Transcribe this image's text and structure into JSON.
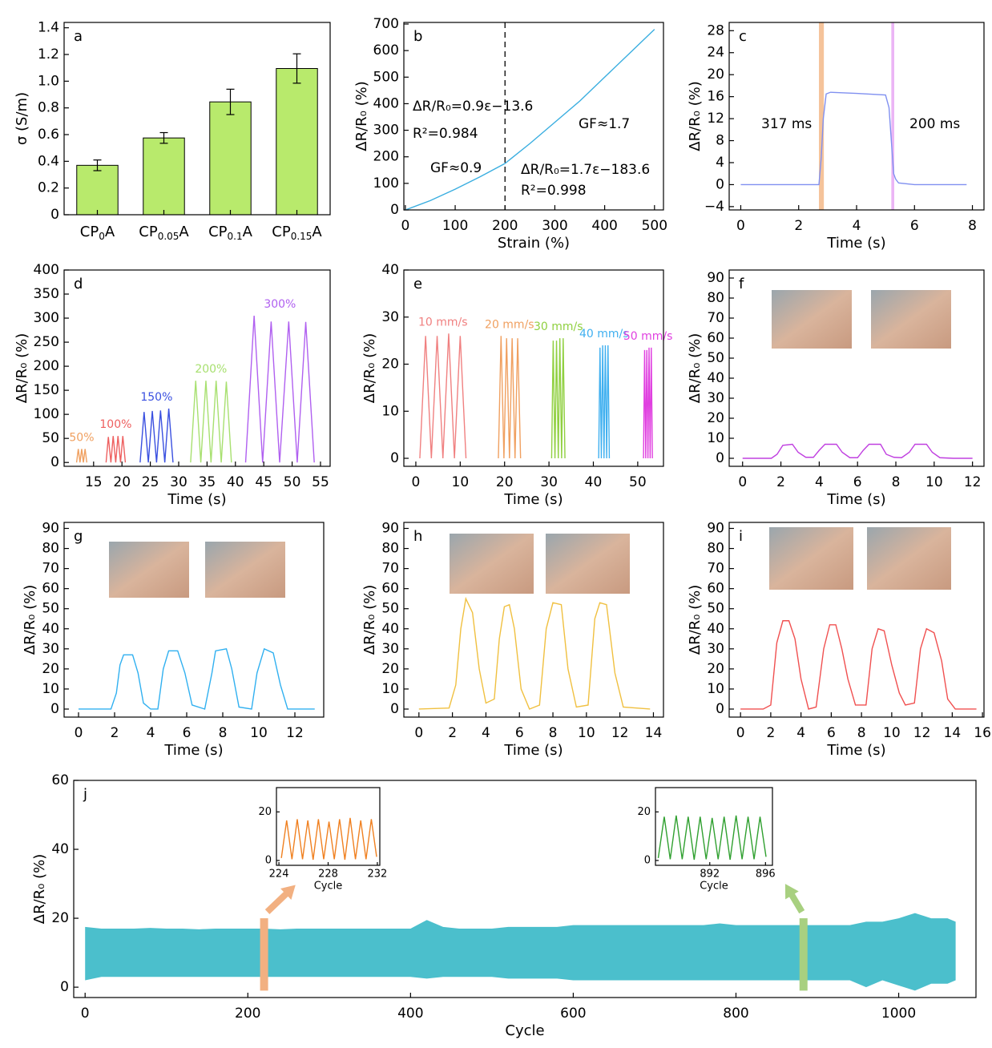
{
  "chart_data": [
    {
      "type": "bar",
      "panel": "a",
      "categories": [
        [
          "CP",
          "0",
          "A"
        ],
        [
          "CP",
          "0.05",
          "A"
        ],
        [
          "CP",
          "0.1",
          "A"
        ],
        [
          "CP",
          "0.15",
          "A"
        ]
      ],
      "values": [
        0.37,
        0.575,
        0.845,
        1.095
      ],
      "errors": [
        0.04,
        0.04,
        0.095,
        0.11
      ],
      "color": "#b8ea6c",
      "ylabel": "σ (S/m)",
      "ylim": [
        0,
        1.44
      ],
      "yticks": [
        0,
        0.2,
        0.4,
        0.6,
        0.8,
        {
          "value": 1,
          "label": "1.0"
        },
        1.2,
        1.4
      ]
    },
    {
      "type": "line",
      "panel": "b",
      "x": [
        0,
        50,
        100,
        150,
        200,
        250,
        300,
        350,
        400,
        450,
        500
      ],
      "values": [
        0,
        35,
        78,
        125,
        175,
        250,
        330,
        410,
        500,
        590,
        680
      ],
      "color": "#3aaee0",
      "vline": 200,
      "xlabel": "Strain (%)",
      "ylabel": "ΔR/R₀ (%)",
      "xlim": [
        -3,
        518
      ],
      "ylim": [
        0,
        706
      ],
      "xticks": [
        0,
        100,
        200,
        300,
        400,
        500
      ],
      "yticks": [
        0,
        100,
        200,
        300,
        400,
        500,
        600,
        700
      ],
      "annotations": [
        "ΔR/R₀=0.9ε−13.6",
        "R²=0.984",
        "GF≈0.9",
        "ΔR/R₀=1.7ε−183.6",
        "R²=0.998",
        "GF≈1.7"
      ]
    },
    {
      "type": "line",
      "panel": "c",
      "x": [
        0,
        1,
        2,
        2.7,
        2.78,
        2.85,
        2.95,
        3.1,
        4,
        5,
        5.12,
        5.2,
        5.28,
        5.35,
        5.45,
        6,
        7,
        7.8
      ],
      "values": [
        0,
        0,
        0,
        0,
        5,
        12,
        16.5,
        16.8,
        16.6,
        16.3,
        14,
        8,
        2,
        1,
        0.3,
        0,
        0,
        0
      ],
      "color": "#8090f0",
      "bands": [
        {
          "x": [
            2.7,
            2.87
          ],
          "color": "#f5c39a"
        },
        {
          "x": [
            5.2,
            5.3
          ],
          "color": "#ebb5f5"
        }
      ],
      "annotations": [
        "317 ms",
        "200 ms"
      ],
      "xlabel": "Time (s)",
      "ylabel": "ΔR/R₀ (%)",
      "xlim": [
        -0.4,
        8.4
      ],
      "ylim": [
        -4.6,
        29.5
      ],
      "xticks": [
        0,
        2,
        4,
        6,
        8
      ],
      "yticks": [
        {
          "value": -4,
          "label": "−4"
        },
        0,
        4,
        8,
        12,
        16,
        20,
        24,
        28
      ]
    },
    {
      "type": "line",
      "panel": "d",
      "series": [
        {
          "name": "50%",
          "color": "#f0a060",
          "x": [
            12,
            12.3,
            12.6,
            12.9,
            13.2,
            13.5,
            13.8
          ],
          "values": [
            0,
            28,
            0,
            28,
            0,
            28,
            0
          ]
        },
        {
          "name": "100%",
          "color": "#ee6060",
          "x": [
            17.2,
            17.6,
            18.05,
            18.45,
            18.9,
            19.3,
            19.75,
            20.15,
            20.6
          ],
          "values": [
            0,
            53,
            0,
            55,
            0,
            55,
            0,
            55,
            0
          ]
        },
        {
          "name": "150%",
          "color": "#3a50e0",
          "x": [
            23.2,
            23.9,
            24.65,
            25.35,
            26.1,
            26.8,
            27.55,
            28.25,
            29
          ],
          "values": [
            0,
            105,
            0,
            107,
            0,
            108,
            0,
            112,
            0
          ]
        },
        {
          "name": "200%",
          "color": "#a8e070",
          "x": [
            32.1,
            33,
            33.9,
            34.8,
            35.7,
            36.6,
            37.5,
            38.4,
            39.3
          ],
          "values": [
            0,
            170,
            0,
            170,
            0,
            170,
            0,
            168,
            0
          ]
        },
        {
          "name": "300%",
          "color": "#b060f0",
          "x": [
            41.8,
            43.3,
            44.8,
            46.3,
            47.8,
            49.4,
            50.9,
            52.4,
            53.9
          ],
          "values": [
            0,
            305,
            0,
            293,
            0,
            293,
            0,
            292,
            0
          ]
        }
      ],
      "xlabel": "Time (s)",
      "ylabel": "ΔR/R₀ (%)",
      "xlim": [
        9.8,
        56.7
      ],
      "ylim": [
        -8,
        400
      ],
      "xticks": [
        15,
        20,
        25,
        30,
        35,
        40,
        45,
        50,
        55
      ],
      "yticks": [
        0,
        50,
        100,
        150,
        200,
        250,
        300,
        350,
        400
      ]
    },
    {
      "type": "line",
      "panel": "e",
      "series": [
        {
          "name": "10 mm/s",
          "color": "#f08080",
          "x": [
            0.9,
            2.2,
            3.5,
            4.8,
            6.1,
            7.4,
            8.7,
            10,
            11.3
          ],
          "values": [
            0,
            26,
            0,
            26,
            0,
            26.5,
            0,
            26,
            0
          ]
        },
        {
          "name": "20 mm/s",
          "color": "#f0a060",
          "x": [
            18.6,
            19.2,
            19.85,
            20.45,
            21.1,
            21.7,
            22.35,
            22.95,
            23.6
          ],
          "values": [
            0,
            26,
            0,
            25.5,
            0,
            25.5,
            0,
            25.5,
            0
          ]
        },
        {
          "name": "30 mm/s",
          "color": "#90d040",
          "x": [
            30.6,
            30.95,
            31.35,
            31.7,
            32.1,
            32.45,
            32.85,
            33.2,
            33.6
          ],
          "values": [
            0,
            25,
            0,
            25,
            0,
            25.5,
            0,
            25.5,
            0
          ]
        },
        {
          "name": "40 mm/s",
          "color": "#40b0f0",
          "x": [
            41.2,
            41.5,
            41.8,
            42.1,
            42.4,
            42.7,
            43,
            43.3,
            43.6
          ],
          "values": [
            0,
            23.5,
            0,
            24,
            0,
            24,
            0,
            24,
            0
          ]
        },
        {
          "name": "50 mm/s",
          "color": "#e040e0",
          "x": [
            51.3,
            51.55,
            51.8,
            52.05,
            52.3,
            52.55,
            52.8,
            53.05,
            53.3
          ],
          "values": [
            0,
            23,
            0,
            23,
            0,
            23.5,
            0,
            23.5,
            0
          ]
        }
      ],
      "xlabel": "Time (s)",
      "ylabel": "ΔR/R₀ (%)",
      "xlim": [
        -2.7,
        55.8
      ],
      "ylim": [
        -1.7,
        40
      ],
      "xticks": [
        0,
        10,
        20,
        30,
        40,
        50
      ],
      "yticks": [
        0,
        10,
        20,
        30,
        40
      ]
    },
    {
      "type": "line",
      "panel": "f",
      "x": [
        0,
        1.5,
        1.8,
        2.1,
        2.6,
        2.9,
        3.3,
        3.7,
        4,
        4.3,
        4.9,
        5.2,
        5.6,
        6,
        6.3,
        6.6,
        7.2,
        7.5,
        7.9,
        8.3,
        8.7,
        9,
        9.6,
        9.9,
        10.3,
        11,
        12
      ],
      "values": [
        0,
        0,
        2,
        6.5,
        7,
        3,
        0.5,
        0.5,
        4,
        7,
        7,
        3,
        0.3,
        0.3,
        4,
        7,
        7,
        2,
        0.5,
        0.3,
        3,
        7,
        7,
        3,
        0.3,
        0,
        0
      ],
      "color": "#c040e0",
      "xlabel": "Time (s)",
      "ylabel": "ΔR/R₀ (%)",
      "xlim": [
        -0.7,
        12.6
      ],
      "ylim": [
        -4,
        94
      ],
      "xticks": [
        0,
        2,
        4,
        6,
        8,
        10,
        12
      ],
      "yticks": [
        0,
        10,
        20,
        30,
        40,
        50,
        60,
        70,
        80,
        90
      ]
    },
    {
      "type": "line",
      "panel": "g",
      "x": [
        0,
        1.8,
        2.1,
        2.3,
        2.5,
        3,
        3.3,
        3.6,
        4,
        4.4,
        4.7,
        5,
        5.5,
        5.9,
        6.3,
        7,
        7.4,
        7.6,
        8.2,
        8.5,
        8.9,
        9.6,
        9.9,
        10.3,
        10.8,
        11.2,
        11.6,
        13.1
      ],
      "values": [
        0,
        0,
        8,
        22,
        27,
        27,
        18,
        3,
        0,
        0,
        20,
        29,
        29,
        18,
        2,
        0,
        18,
        29,
        30,
        20,
        1,
        0,
        18,
        30,
        28,
        12,
        0,
        0
      ],
      "color": "#30b0f0",
      "xlabel": "Time (s)",
      "ylabel": "ΔR/R₀ (%)",
      "xlim": [
        -0.8,
        13.6
      ],
      "ylim": [
        -4,
        93
      ],
      "xticks": [
        0,
        2,
        4,
        6,
        8,
        10,
        12
      ],
      "yticks": [
        0,
        10,
        20,
        30,
        40,
        50,
        60,
        70,
        80,
        90
      ]
    },
    {
      "type": "line",
      "panel": "h",
      "x": [
        0,
        1.8,
        2.2,
        2.5,
        2.8,
        3.2,
        3.6,
        4,
        4.5,
        4.8,
        5.1,
        5.4,
        5.7,
        6.1,
        6.6,
        7.2,
        7.6,
        8,
        8.5,
        8.9,
        9.4,
        10.1,
        10.5,
        10.8,
        11.2,
        11.7,
        12.2,
        13.8
      ],
      "values": [
        0,
        0.5,
        12,
        40,
        55,
        48,
        20,
        3,
        5,
        35,
        51,
        52,
        40,
        10,
        0,
        2,
        40,
        53,
        52,
        20,
        1,
        2,
        45,
        53,
        52,
        18,
        1,
        0
      ],
      "color": "#f0c040",
      "xlabel": "Time (s)",
      "ylabel": "ΔR/R₀ (%)",
      "xlim": [
        -0.9,
        14.6
      ],
      "ylim": [
        -4,
        93
      ],
      "xticks": [
        0,
        2,
        4,
        6,
        8,
        10,
        12,
        14
      ],
      "yticks": [
        0,
        10,
        20,
        30,
        40,
        50,
        60,
        70,
        80,
        90
      ]
    },
    {
      "type": "line",
      "panel": "i",
      "x": [
        0,
        1.5,
        2,
        2.4,
        2.8,
        3.2,
        3.6,
        4,
        4.5,
        5,
        5.5,
        5.9,
        6.3,
        6.7,
        7.1,
        7.6,
        8.3,
        8.7,
        9.1,
        9.5,
        10,
        10.5,
        10.9,
        11.5,
        11.9,
        12.3,
        12.8,
        13.3,
        13.7,
        14.2,
        15.6
      ],
      "values": [
        0,
        0,
        2,
        33,
        44,
        44,
        35,
        15,
        0,
        1,
        30,
        42,
        42,
        30,
        15,
        2,
        2,
        30,
        40,
        39,
        22,
        8,
        2,
        3,
        30,
        40,
        38,
        24,
        5,
        0,
        0
      ],
      "color": "#f05050",
      "xlabel": "Time (s)",
      "ylabel": "ΔR/R₀ (%)",
      "xlim": [
        -0.75,
        16.1
      ],
      "ylim": [
        -4,
        93
      ],
      "xticks": [
        0,
        2,
        4,
        6,
        8,
        10,
        12,
        14,
        16
      ],
      "yticks": [
        0,
        10,
        20,
        30,
        40,
        50,
        60,
        70,
        80,
        90
      ]
    },
    {
      "type": "area",
      "panel": "j",
      "x": [
        0,
        20,
        40,
        60,
        80,
        100,
        120,
        140,
        160,
        180,
        200,
        220,
        240,
        260,
        280,
        300,
        320,
        340,
        360,
        380,
        400,
        420,
        440,
        460,
        480,
        500,
        520,
        540,
        560,
        580,
        600,
        620,
        640,
        660,
        680,
        700,
        720,
        740,
        760,
        780,
        800,
        820,
        840,
        860,
        880,
        900,
        920,
        940,
        960,
        980,
        1000,
        1020,
        1040,
        1060,
        1070
      ],
      "upper": [
        17.5,
        17,
        17,
        17,
        17.2,
        17,
        17,
        16.8,
        17,
        17,
        17,
        17,
        16.8,
        17,
        17,
        17,
        17,
        17,
        17,
        17,
        17,
        19.5,
        17.5,
        17,
        17,
        17,
        17.5,
        17.5,
        17.5,
        17.5,
        18,
        18,
        18,
        18,
        18,
        18,
        18,
        18,
        18,
        18.5,
        18,
        18,
        18,
        18,
        18,
        18,
        18,
        18,
        19,
        19,
        20,
        21.5,
        20,
        20,
        19
      ],
      "lower": [
        2,
        3,
        3,
        3,
        3,
        3,
        3,
        3,
        3,
        3,
        3,
        3,
        3,
        3,
        3,
        3,
        3,
        3,
        3,
        3,
        3,
        2.5,
        3,
        3,
        3,
        3,
        2.5,
        2.5,
        2.5,
        2.5,
        2,
        2,
        2,
        2,
        2,
        2,
        2,
        2,
        2,
        2,
        2,
        2,
        2,
        2,
        2,
        2,
        2,
        2,
        0,
        2,
        0.5,
        -1,
        1,
        1,
        2
      ],
      "color": "#4bbfcc",
      "highlights": [
        {
          "x": 220,
          "color": "#f2b081"
        },
        {
          "x": 883,
          "color": "#a8d080"
        }
      ],
      "xlabel": "Cycle",
      "ylabel": "ΔR/R₀ (%)",
      "xlim": [
        -14,
        1095
      ],
      "ylim": [
        -3,
        60
      ],
      "xticks": [
        0,
        200,
        400,
        600,
        800,
        1000
      ],
      "yticks": [
        0,
        20,
        40,
        60
      ],
      "insets": [
        {
          "type": "line",
          "x": [
            224.2,
            224.63,
            225.06,
            225.49,
            225.92,
            226.35,
            226.78,
            227.21,
            227.64,
            228.07,
            228.5,
            228.93,
            229.36,
            229.79,
            230.22,
            230.65,
            231.08,
            231.51,
            231.94
          ],
          "values": [
            1,
            16.5,
            0.5,
            17,
            0.5,
            16.5,
            0.3,
            17,
            0.5,
            16,
            0.5,
            17,
            0.3,
            17.5,
            0.5,
            16.5,
            0.5,
            17,
            1.5
          ],
          "color": "#f08020",
          "xlabel": "Cycle",
          "xlim": [
            223.8,
            232.2
          ],
          "ylim": [
            -2,
            30
          ],
          "xticks": [
            224,
            228,
            232
          ],
          "yticks": [
            0,
            20
          ]
        },
        {
          "type": "line",
          "x": [
            888.3,
            888.73,
            889.16,
            889.59,
            890.02,
            890.45,
            890.88,
            891.31,
            891.74,
            892.17,
            892.6,
            893.03,
            893.46,
            893.89,
            894.32,
            894.75,
            895.18,
            895.61,
            896.04
          ],
          "values": [
            1,
            18,
            0.5,
            18.5,
            0.5,
            18,
            0.3,
            18,
            0.5,
            17.5,
            0.5,
            18,
            0.3,
            18.5,
            0.5,
            18,
            0.5,
            18,
            1.5
          ],
          "color": "#30a030",
          "xlabel": "Cycle",
          "xlim": [
            888.1,
            896.5
          ],
          "ylim": [
            -2,
            30
          ],
          "xticks": [
            892,
            896
          ],
          "yticks": [
            0,
            20
          ]
        }
      ]
    }
  ]
}
